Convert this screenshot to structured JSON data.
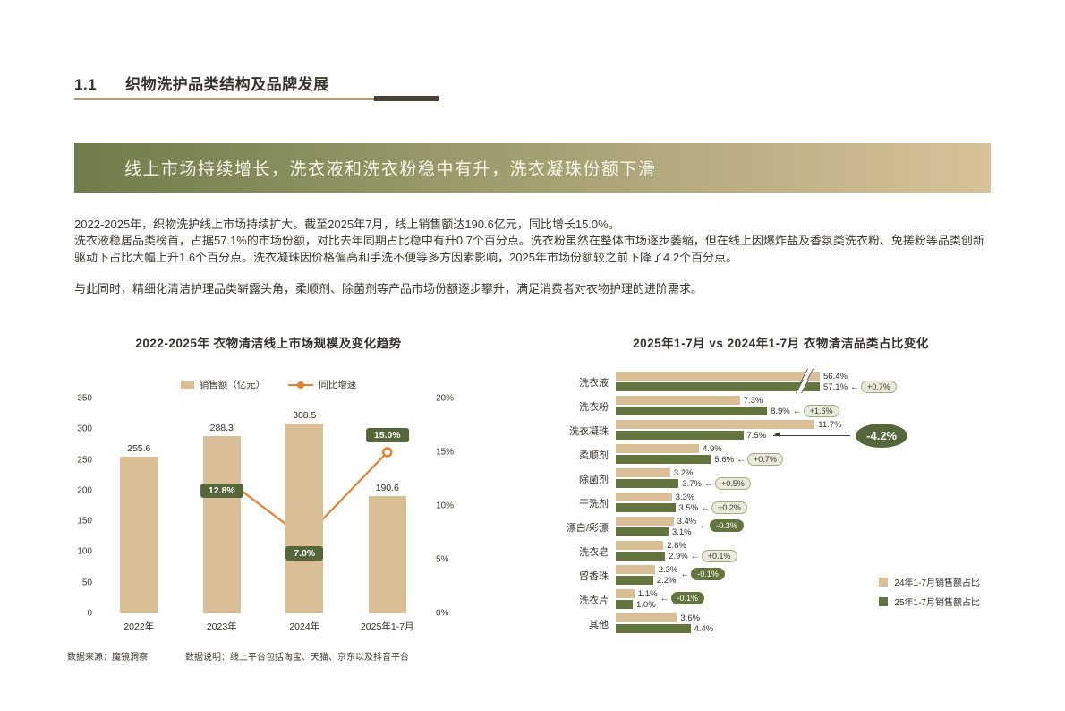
{
  "page": {
    "section_number": "1.1",
    "section_title": "织物洗护品类结构及品牌发展",
    "banner": "线上市场持续增长，洗衣液和洗衣粉稳中有升，洗衣凝珠份额下滑",
    "paragraphs": [
      "2022-2025年，织物洗护线上市场持续扩大。截至2025年7月，线上销售额达190.6亿元，同比增长15.0%。",
      "洗衣液稳居品类榜首，占据57.1%的市场份额，对比去年同期占比稳中有升0.7个百分点。洗衣粉虽然在整体市场逐步萎缩，但在线上因爆炸盐及香氛类洗衣粉、免搓粉等品类创新驱动下占比大幅上升1.6个百分点。洗衣凝珠因价格偏高和手洗不便等多方因素影响，2025年市场份额较之前下降了4.2个百分点。",
      "与此同时，精细化清洁护理品类崭露头角，柔顺剂、除菌剂等产品市场份额逐步攀升，满足消费者对衣物护理的进阶需求。"
    ]
  },
  "footnotes": {
    "source": "数据来源：魔镜洞察",
    "note": "数据说明：线上平台包括淘宝、天猫、京东以及抖音平台"
  },
  "colors": {
    "tan": "#D9BE96",
    "olive": "#64743E",
    "olive_dark": "#55663A",
    "orange": "#E8802F",
    "banner_left": "#6F7D4A",
    "banner_right": "#D8C298"
  },
  "chart_data": [
    {
      "type": "bar",
      "subtype": "bar+line-combo",
      "title": "2022-2025年  衣物清洁线上市场规模及变化趋势",
      "categories": [
        "2022年",
        "2023年",
        "2024年",
        "2025年1-7月"
      ],
      "bar_series": {
        "name": "销售额（亿元）",
        "values": [
          255.6,
          288.3,
          308.5,
          190.6
        ]
      },
      "line_series": {
        "name": "同比增速",
        "values_pct": [
          null,
          12.8,
          7.0,
          15.0
        ],
        "labels": [
          "",
          "12.8%",
          "7.0%",
          "15.0%"
        ],
        "label_side": [
          "",
          "below",
          "below",
          "above"
        ]
      },
      "left_axis": {
        "min": 0,
        "max": 350,
        "step": 50
      },
      "right_axis": {
        "min": 0,
        "max": 20,
        "step": 5,
        "suffix": "%"
      },
      "grid": false,
      "legend_position": "top-center"
    },
    {
      "type": "bar",
      "orientation": "horizontal",
      "title": "2025年1-7月 vs 2024年1-7月  衣物清洁品类占比变化",
      "categories": [
        "洗衣液",
        "洗衣粉",
        "洗衣凝珠",
        "柔顺剂",
        "除菌剂",
        "干洗剂",
        "漂白/彩漂",
        "洗衣皂",
        "留香珠",
        "洗衣片",
        "其他"
      ],
      "series": [
        {
          "name": "24年1-7月销售额占比",
          "color_key": "tan",
          "values": [
            56.4,
            7.3,
            11.7,
            4.9,
            3.2,
            3.3,
            3.4,
            2.8,
            2.3,
            1.1,
            3.6
          ]
        },
        {
          "name": "25年1-7月销售额占比",
          "color_key": "olive",
          "values": [
            57.1,
            8.9,
            7.5,
            5.6,
            3.7,
            3.5,
            3.1,
            2.9,
            2.2,
            1.0,
            4.4
          ]
        }
      ],
      "annotations": [
        {
          "delta": "+0.7%",
          "style": "pos"
        },
        {
          "delta": "+1.6%",
          "style": "pos"
        },
        {
          "delta": "-4.2%",
          "style": "neg-large"
        },
        {
          "delta": "+0.7%",
          "style": "pos"
        },
        {
          "delta": "+0.5%",
          "style": "pos"
        },
        {
          "delta": "+0.2%",
          "style": "pos"
        },
        {
          "delta": "-0.3%",
          "style": "neg"
        },
        {
          "delta": "+0.1%",
          "style": "pos"
        },
        {
          "delta": "-0.1%",
          "style": "neg"
        },
        {
          "delta": "-0.1%",
          "style": "neg"
        },
        null
      ],
      "axis_break_rows": [
        0
      ],
      "xlim": [
        0,
        12
      ],
      "legend_position": "bottom-right"
    }
  ]
}
